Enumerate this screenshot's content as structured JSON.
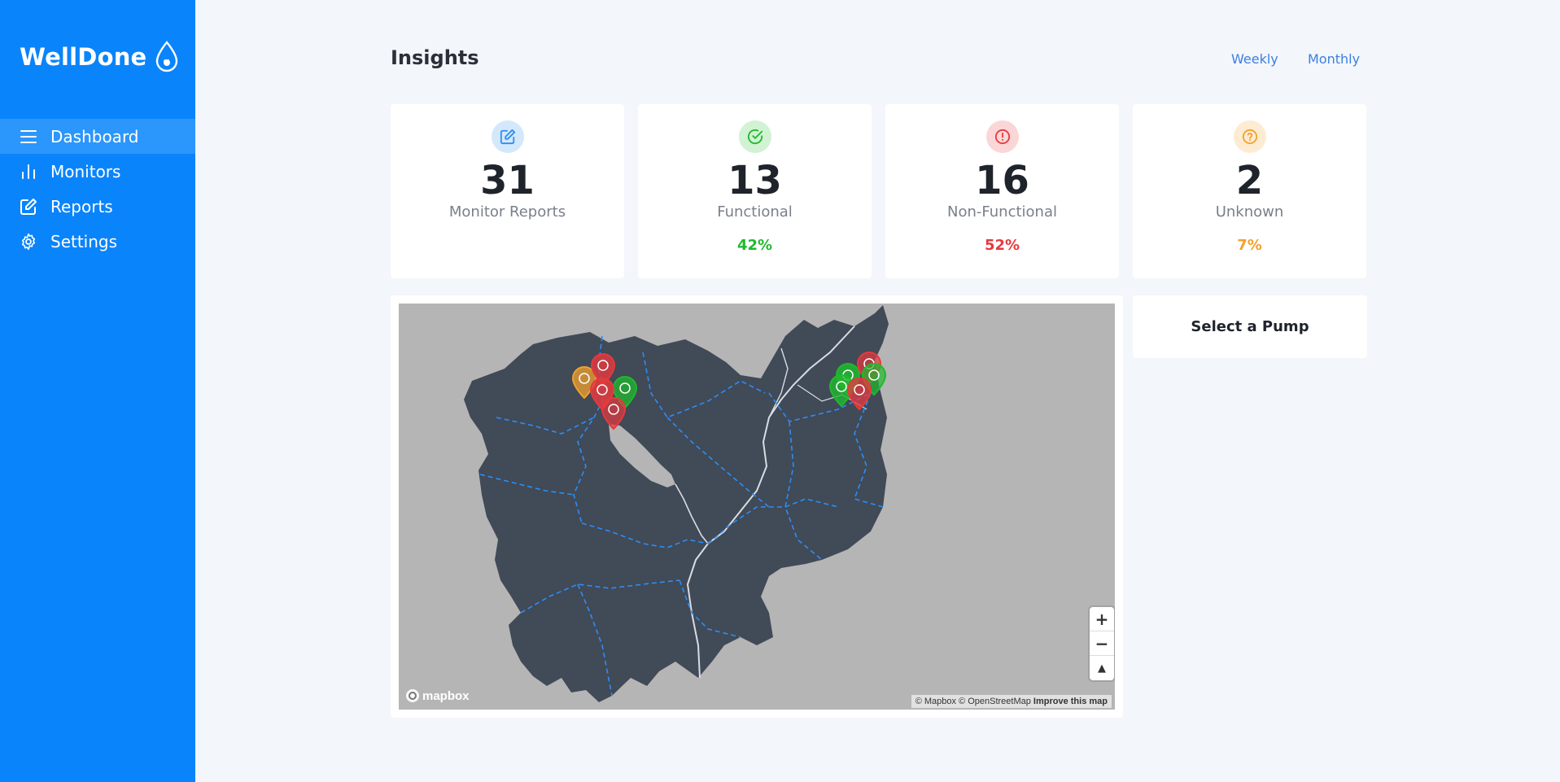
{
  "brand": {
    "name": "WellDone"
  },
  "nav": {
    "items": [
      {
        "label": "Dashboard",
        "icon": "menu-icon",
        "active": true
      },
      {
        "label": "Monitors",
        "icon": "bar-chart-icon",
        "active": false
      },
      {
        "label": "Reports",
        "icon": "edit-icon",
        "active": false
      },
      {
        "label": "Settings",
        "icon": "gear-icon",
        "active": false
      }
    ]
  },
  "header": {
    "title": "Insights",
    "weekly_label": "Weekly",
    "monthly_label": "Monthly"
  },
  "stats": [
    {
      "value": "31",
      "label": "Monitor Reports",
      "pct": "",
      "icon": "edit-icon",
      "color": "#2b8ef5",
      "bg": "#d4e8fc"
    },
    {
      "value": "13",
      "label": "Functional",
      "pct": "42%",
      "icon": "check-circle-icon",
      "color": "#1fb92e",
      "bg": "#d1f2d3"
    },
    {
      "value": "16",
      "label": "Non-Functional",
      "pct": "52%",
      "icon": "alert-circle-icon",
      "color": "#e6393d",
      "bg": "#fbd6d7"
    },
    {
      "value": "2",
      "label": "Unknown",
      "pct": "7%",
      "icon": "help-circle-icon",
      "color": "#f2a12e",
      "bg": "#fdecd2"
    }
  ],
  "map": {
    "zoom_in": "+",
    "zoom_out": "−",
    "reset_north": "▲",
    "attribution": "© Mapbox © OpenStreetMap",
    "improve": "Improve this map",
    "logo": "mapbox",
    "colors": {
      "land": "#414a57",
      "background": "#b5b5b5",
      "border": "#2b8ef5",
      "river": "#d8dde4",
      "functional": "#1fb92e",
      "non_functional": "#e6393d",
      "unknown": "#f2a12e"
    }
  },
  "pump_panel": {
    "title": "Select a Pump"
  }
}
